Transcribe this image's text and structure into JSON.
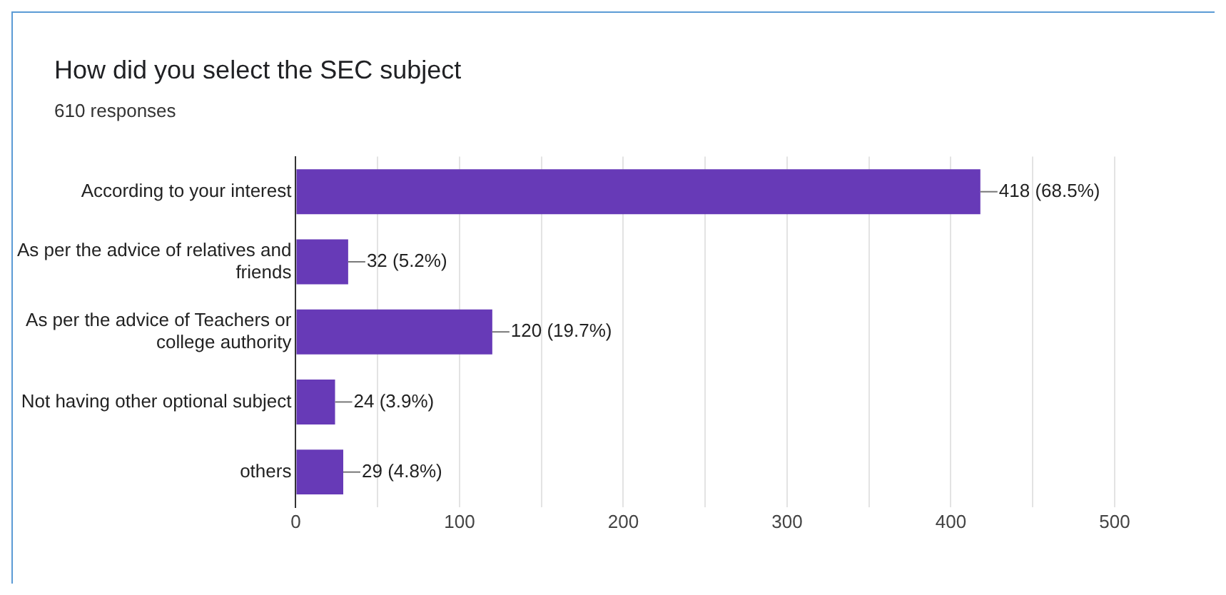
{
  "chart_data": {
    "type": "bar",
    "orientation": "horizontal",
    "title": "How did you select the SEC subject",
    "subtitle": "610 responses",
    "categories": [
      "According to your interest",
      "As per the advice of relatives and friends",
      "As per the advice of Teachers or college authority",
      "Not having other optional subject",
      "others"
    ],
    "values": [
      418,
      32,
      120,
      24,
      29
    ],
    "value_labels": [
      "418 (68.5%)",
      "32 (5.2%)",
      "120 (19.7%)",
      "24 (3.9%)",
      "29 (4.8%)"
    ],
    "color": "#673ab7",
    "xlim": [
      0,
      500
    ],
    "xticks": [
      0,
      {
        "value": 50,
        "label": null
      },
      100,
      {
        "value": 150,
        "label": null
      },
      200,
      {
        "value": 250,
        "label": null
      },
      300,
      {
        "value": 350,
        "label": null
      },
      400,
      {
        "value": 450,
        "label": null
      },
      500
    ],
    "grid": "x"
  }
}
